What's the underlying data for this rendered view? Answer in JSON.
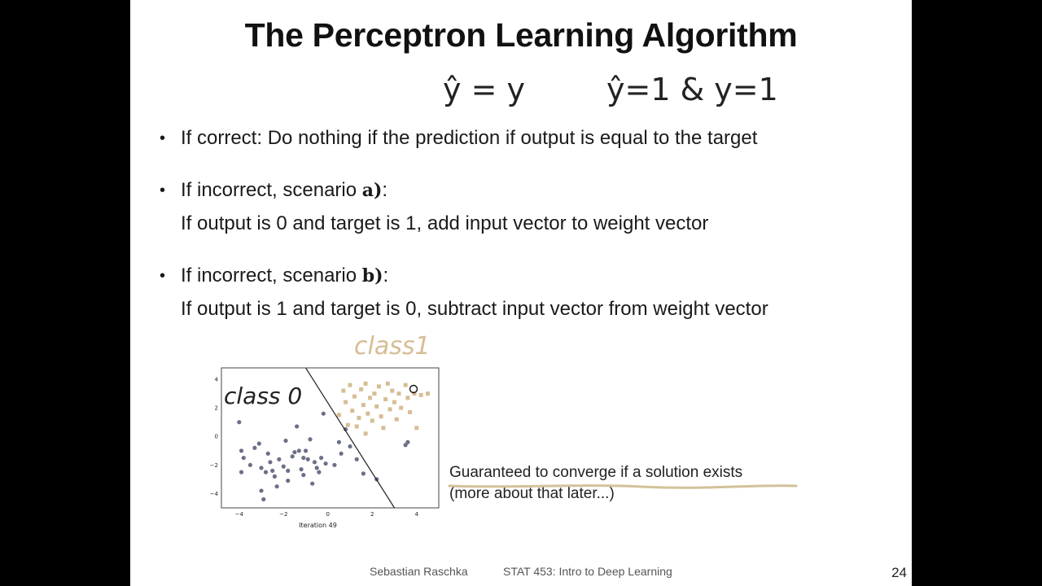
{
  "slide": {
    "title": "The Perceptron Learning Algorithm",
    "handwriting": {
      "top_left": "ŷ = y",
      "top_right": "ŷ=1 & y=1",
      "class0": "class 0",
      "class1": "class1"
    },
    "bullets": [
      {
        "text": "If correct: Do nothing if the prediction if output is equal to the target"
      },
      {
        "prefix": "If incorrect, scenario ",
        "bold": "a)",
        "suffix": ":",
        "line2": "If output is 0 and target is 1, add input vector to weight vector"
      },
      {
        "prefix": "If incorrect, scenario ",
        "bold": "b)",
        "suffix": ":",
        "line2": "If output is 1 and target is 0, subtract input vector from weight vector"
      }
    ],
    "note": {
      "line1": "Guaranteed to converge if a solution exists",
      "line2": "(more about that later...)"
    },
    "footer": {
      "author": "Sebastian Raschka",
      "course": "STAT 453: Intro to Deep Learning",
      "page": "24"
    },
    "colors": {
      "class0": "#6b7088",
      "class1": "#d6bd95",
      "underline": "#d2c29a"
    }
  },
  "chart_data": {
    "type": "scatter",
    "xlabel": "Iteration 49",
    "xticks": [
      -4,
      -2,
      0,
      2,
      4
    ],
    "yticks": [
      -4,
      -2,
      0,
      2,
      4
    ],
    "xlim": [
      -4.8,
      5.0
    ],
    "ylim": [
      -5.0,
      4.8
    ],
    "decision_boundary": {
      "x": [
        -1.0,
        3.0
      ],
      "y": [
        4.8,
        -5.0
      ]
    },
    "series": [
      {
        "marker": "circle",
        "points": [
          [
            -4.0,
            1.0
          ],
          [
            -3.9,
            -1.0
          ],
          [
            -3.9,
            -2.5
          ],
          [
            -3.8,
            -1.5
          ],
          [
            -3.5,
            -2.0
          ],
          [
            -3.3,
            -0.8
          ],
          [
            -3.1,
            -0.5
          ],
          [
            -3.0,
            -2.2
          ],
          [
            -3.0,
            -3.8
          ],
          [
            -2.9,
            -4.4
          ],
          [
            -2.8,
            -2.5
          ],
          [
            -2.7,
            -1.2
          ],
          [
            -2.6,
            -1.8
          ],
          [
            -2.5,
            -2.4
          ],
          [
            -2.4,
            -2.8
          ],
          [
            -2.3,
            -3.5
          ],
          [
            -2.2,
            -1.6
          ],
          [
            -2.0,
            -2.1
          ],
          [
            -1.9,
            -0.3
          ],
          [
            -1.8,
            -2.4
          ],
          [
            -1.8,
            -3.1
          ],
          [
            -1.6,
            -1.4
          ],
          [
            -1.5,
            -1.1
          ],
          [
            -1.4,
            0.7
          ],
          [
            -1.3,
            -1.0
          ],
          [
            -1.2,
            -2.3
          ],
          [
            -1.1,
            -1.5
          ],
          [
            -1.1,
            -2.7
          ],
          [
            -1.0,
            -1.0
          ],
          [
            -0.9,
            -1.6
          ],
          [
            -0.8,
            -0.2
          ],
          [
            -0.7,
            -3.3
          ],
          [
            -0.6,
            -1.8
          ],
          [
            -0.5,
            -2.2
          ],
          [
            -0.4,
            -2.5
          ],
          [
            -0.3,
            -1.5
          ],
          [
            -0.2,
            1.6
          ],
          [
            -0.1,
            -1.9
          ],
          [
            0.3,
            -2.0
          ],
          [
            0.5,
            -0.4
          ],
          [
            0.6,
            -1.2
          ],
          [
            0.8,
            0.5
          ],
          [
            1.0,
            -0.7
          ],
          [
            1.3,
            -1.6
          ],
          [
            1.6,
            -2.6
          ],
          [
            2.2,
            -3.0
          ],
          [
            3.5,
            -0.6
          ],
          [
            3.6,
            -0.4
          ]
        ]
      },
      {
        "marker": "square",
        "points": [
          [
            0.5,
            1.5
          ],
          [
            0.7,
            3.2
          ],
          [
            0.8,
            2.4
          ],
          [
            0.9,
            0.8
          ],
          [
            1.0,
            3.6
          ],
          [
            1.1,
            1.8
          ],
          [
            1.2,
            2.8
          ],
          [
            1.3,
            0.7
          ],
          [
            1.4,
            1.3
          ],
          [
            1.5,
            3.3
          ],
          [
            1.6,
            2.2
          ],
          [
            1.7,
            3.7
          ],
          [
            1.7,
            0.2
          ],
          [
            1.8,
            1.6
          ],
          [
            1.9,
            2.7
          ],
          [
            2.0,
            1.1
          ],
          [
            2.1,
            3.0
          ],
          [
            2.2,
            2.1
          ],
          [
            2.3,
            3.5
          ],
          [
            2.4,
            1.4
          ],
          [
            2.5,
            0.6
          ],
          [
            2.6,
            2.6
          ],
          [
            2.7,
            3.7
          ],
          [
            2.8,
            1.9
          ],
          [
            2.9,
            3.2
          ],
          [
            3.0,
            2.4
          ],
          [
            3.1,
            1.2
          ],
          [
            3.2,
            3.0
          ],
          [
            3.3,
            2.0
          ],
          [
            3.5,
            3.6
          ],
          [
            3.6,
            2.7
          ],
          [
            3.7,
            1.7
          ],
          [
            3.9,
            3.0
          ],
          [
            4.0,
            0.6
          ],
          [
            4.2,
            2.9
          ],
          [
            4.5,
            3.0
          ]
        ]
      }
    ]
  }
}
